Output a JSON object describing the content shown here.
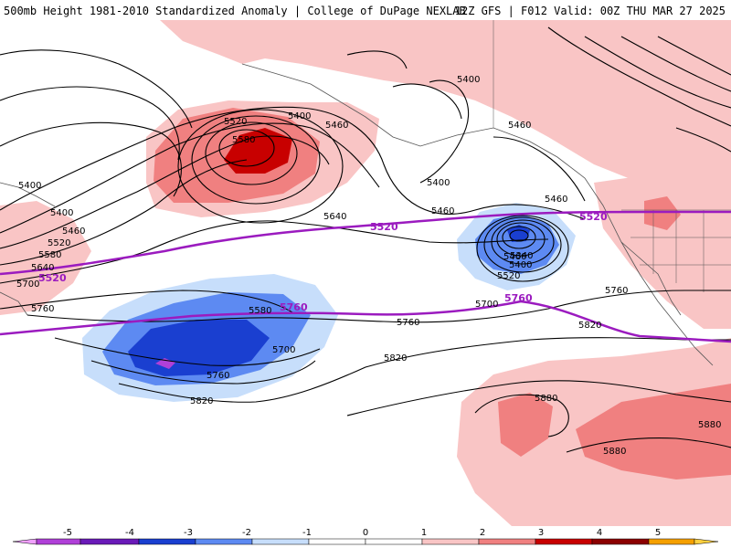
{
  "header": {
    "title": "500mb Height 1981-2010 Standardized Anomaly | College of DuPage NEXLAB",
    "run_info": "12Z GFS | F012 Valid: 00Z THU MAR 27 2025"
  },
  "colors": {
    "pos1": "#f9c5c5",
    "pos2": "#f08080",
    "pos3": "#c80000",
    "neg1": "#c7defb",
    "neg2": "#5d8af2",
    "neg3": "#1a3fd0",
    "neg5": "#b040d8",
    "contour": "#000000",
    "highlight": "#9b1bbf",
    "coast": "#555555"
  },
  "contour_labels": [
    {
      "id": "l1",
      "text": "5400"
    },
    {
      "id": "l2",
      "text": "5520"
    },
    {
      "id": "l3",
      "text": "5580"
    },
    {
      "id": "l4",
      "text": "5400"
    },
    {
      "id": "l5",
      "text": "5460"
    },
    {
      "id": "l6",
      "text": "5400"
    },
    {
      "id": "l7",
      "text": "5460"
    },
    {
      "id": "l8",
      "text": "5400"
    },
    {
      "id": "l9",
      "text": "5460"
    },
    {
      "id": "l10",
      "text": "5400"
    },
    {
      "id": "l11",
      "text": "5460"
    },
    {
      "id": "l12",
      "text": "5520"
    },
    {
      "id": "l13",
      "text": "5580"
    },
    {
      "id": "l14",
      "text": "5640"
    },
    {
      "id": "l15",
      "text": "5700"
    },
    {
      "id": "l16",
      "text": "5760"
    },
    {
      "id": "l17",
      "text": "5640"
    },
    {
      "id": "l18",
      "text": "5460"
    },
    {
      "id": "l19",
      "text": "5340"
    },
    {
      "id": "l20",
      "text": "5400"
    },
    {
      "id": "l21",
      "text": "5460"
    },
    {
      "id": "l22",
      "text": "5520"
    },
    {
      "id": "l23",
      "text": "5700"
    },
    {
      "id": "l24",
      "text": "5760"
    },
    {
      "id": "l25",
      "text": "5820"
    },
    {
      "id": "l26",
      "text": "5580"
    },
    {
      "id": "l27",
      "text": "5700"
    },
    {
      "id": "l28",
      "text": "5760"
    },
    {
      "id": "l29",
      "text": "5820"
    },
    {
      "id": "l30",
      "text": "5820"
    },
    {
      "id": "l31",
      "text": "5760"
    },
    {
      "id": "l32",
      "text": "5880"
    },
    {
      "id": "l33",
      "text": "5880"
    },
    {
      "id": "l34",
      "text": "5880"
    }
  ],
  "highlight_labels": [
    {
      "id": "h1",
      "text": "5520"
    },
    {
      "id": "h2",
      "text": "5520"
    },
    {
      "id": "h3",
      "text": "5760"
    },
    {
      "id": "h4",
      "text": "5760"
    },
    {
      "id": "h5",
      "text": "5520"
    }
  ],
  "legend": {
    "ticks": [
      "-5",
      "-4",
      "-3",
      "-2",
      "-1",
      "0",
      "1",
      "2",
      "3",
      "4",
      "5"
    ]
  }
}
